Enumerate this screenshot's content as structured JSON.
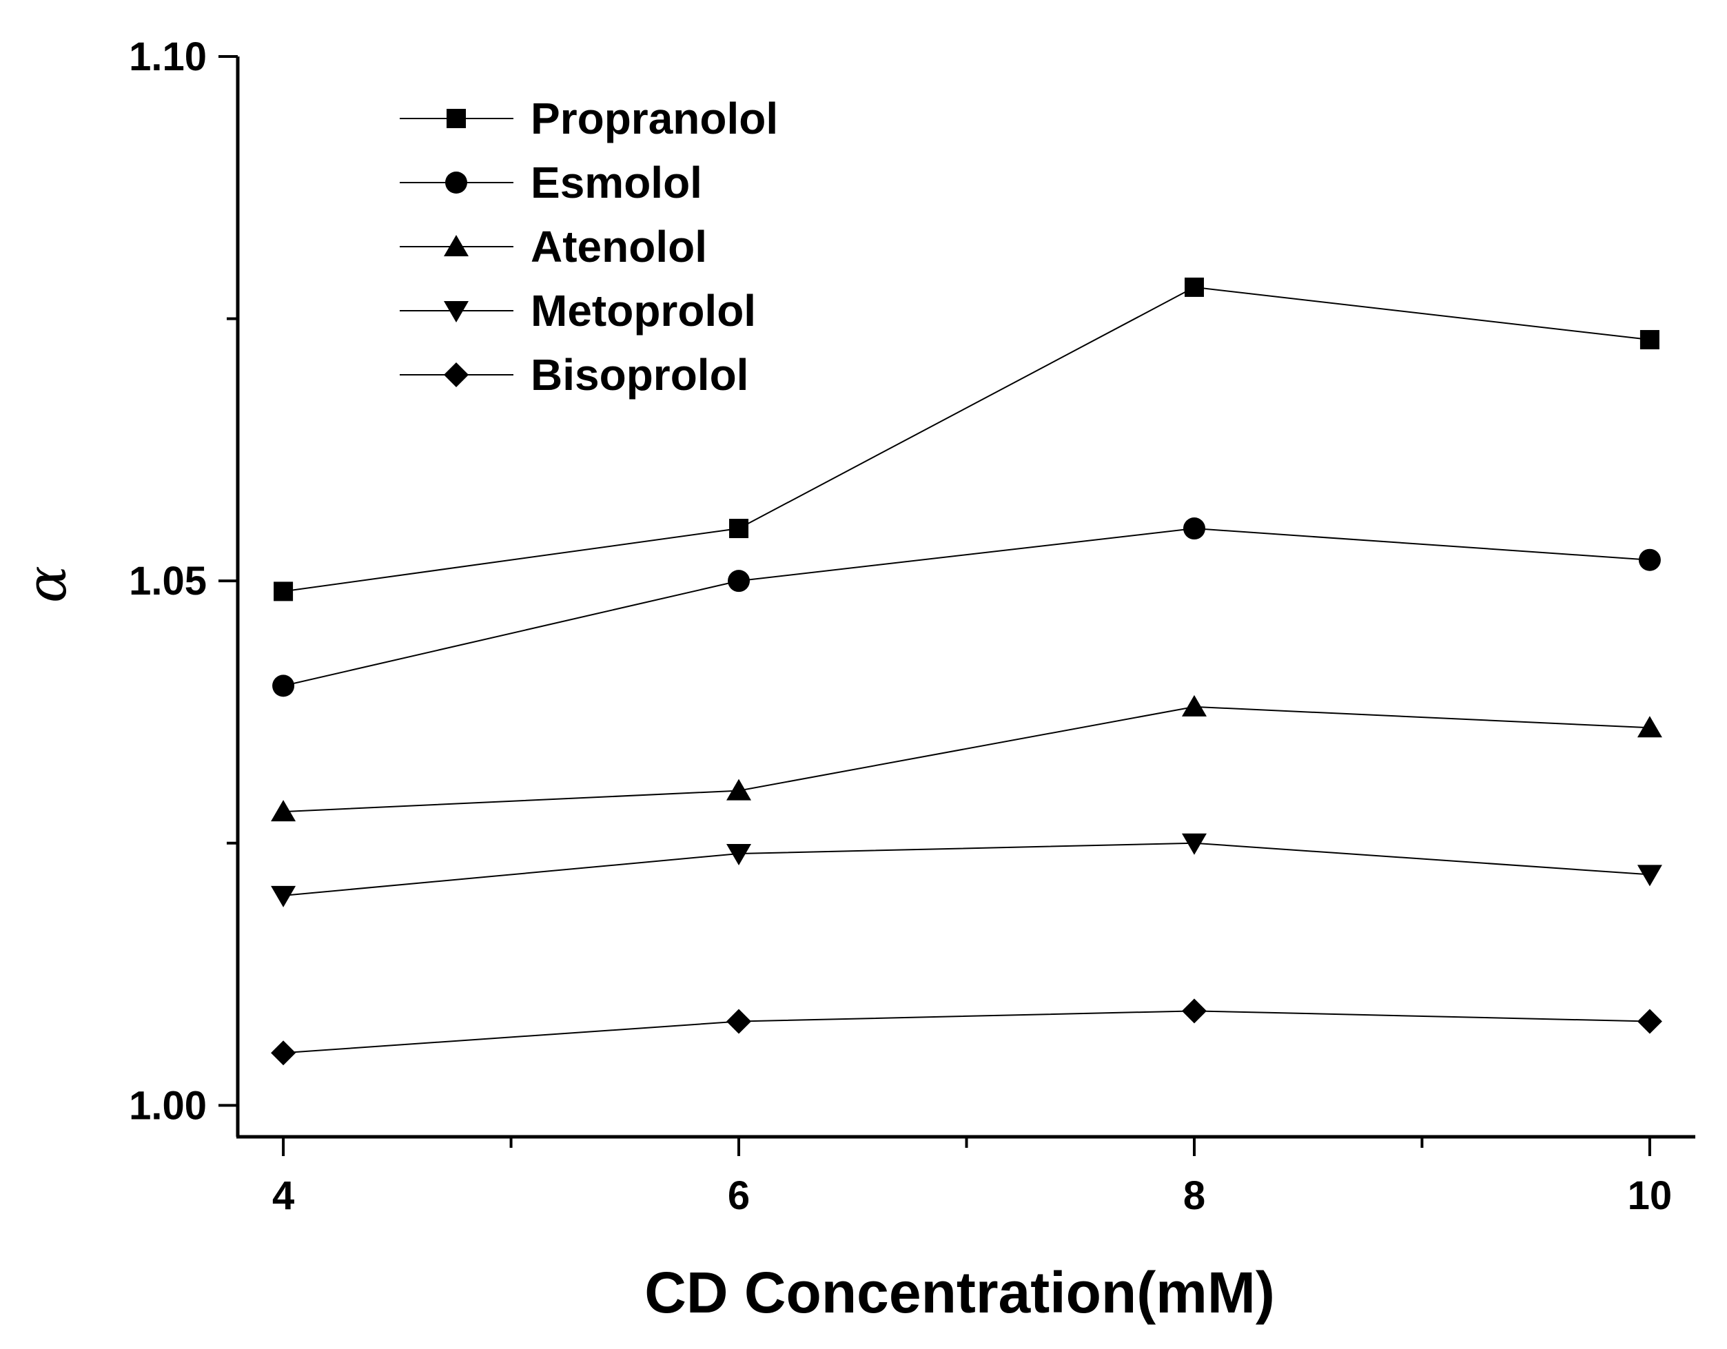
{
  "chart_data": {
    "type": "line",
    "title": "",
    "xlabel": "CD Concentration(mM)",
    "ylabel": "α",
    "x": [
      4,
      6,
      8,
      10
    ],
    "xlim": [
      3.8,
      10.2
    ],
    "ylim": [
      0.997,
      1.1
    ],
    "x_ticks": [
      4,
      6,
      8,
      10
    ],
    "x_tick_labels": [
      "4",
      "6",
      "8",
      "10"
    ],
    "x_minor_ticks": [
      5,
      7,
      9
    ],
    "y_ticks": [
      1.0,
      1.05,
      1.1
    ],
    "y_tick_labels": [
      "1.00",
      "1.05",
      "1.10"
    ],
    "y_minor_ticks": [
      1.025,
      1.075
    ],
    "legend_position": "top-left",
    "series": [
      {
        "name": "Propranolol",
        "marker": "square",
        "values": [
          1.049,
          1.055,
          1.078,
          1.073
        ]
      },
      {
        "name": "Esmolol",
        "marker": "circle",
        "values": [
          1.04,
          1.05,
          1.055,
          1.052
        ]
      },
      {
        "name": "Atenolol",
        "marker": "triangle-up",
        "values": [
          1.028,
          1.03,
          1.038,
          1.036
        ]
      },
      {
        "name": "Metoprolol",
        "marker": "triangle-down",
        "values": [
          1.02,
          1.024,
          1.025,
          1.022
        ]
      },
      {
        "name": "Bisoprolol",
        "marker": "diamond",
        "values": [
          1.005,
          1.008,
          1.009,
          1.008
        ]
      }
    ]
  }
}
